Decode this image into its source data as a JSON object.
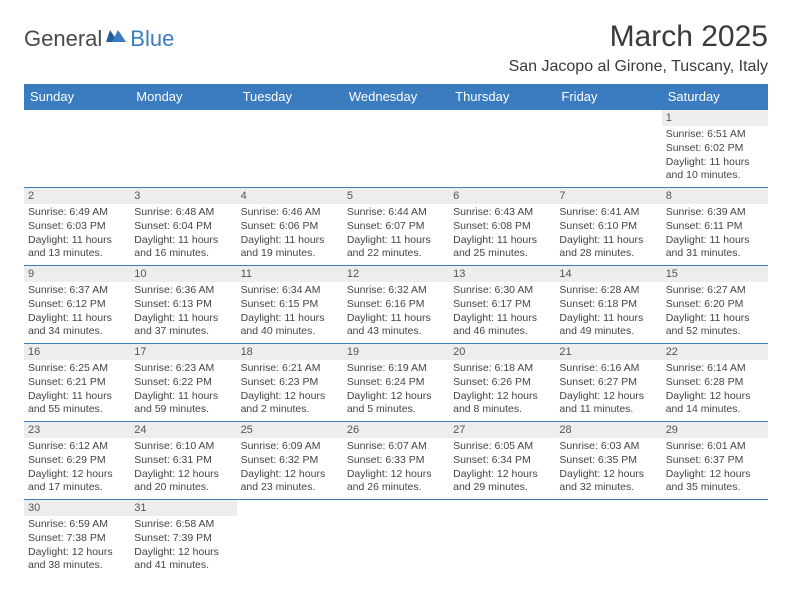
{
  "logo": {
    "text1": "General",
    "text2": "Blue"
  },
  "title": "March 2025",
  "location": "San Jacopo al Girone, Tuscany, Italy",
  "colors": {
    "header_bg": "#3b7bbf",
    "header_text": "#ffffff",
    "daynum_bg": "#ededed",
    "border": "#3b7bbf",
    "text": "#444444"
  },
  "day_headers": [
    "Sunday",
    "Monday",
    "Tuesday",
    "Wednesday",
    "Thursday",
    "Friday",
    "Saturday"
  ],
  "weeks": [
    [
      null,
      null,
      null,
      null,
      null,
      null,
      {
        "n": "1",
        "sr": "Sunrise: 6:51 AM",
        "ss": "Sunset: 6:02 PM",
        "d1": "Daylight: 11 hours",
        "d2": "and 10 minutes."
      }
    ],
    [
      {
        "n": "2",
        "sr": "Sunrise: 6:49 AM",
        "ss": "Sunset: 6:03 PM",
        "d1": "Daylight: 11 hours",
        "d2": "and 13 minutes."
      },
      {
        "n": "3",
        "sr": "Sunrise: 6:48 AM",
        "ss": "Sunset: 6:04 PM",
        "d1": "Daylight: 11 hours",
        "d2": "and 16 minutes."
      },
      {
        "n": "4",
        "sr": "Sunrise: 6:46 AM",
        "ss": "Sunset: 6:06 PM",
        "d1": "Daylight: 11 hours",
        "d2": "and 19 minutes."
      },
      {
        "n": "5",
        "sr": "Sunrise: 6:44 AM",
        "ss": "Sunset: 6:07 PM",
        "d1": "Daylight: 11 hours",
        "d2": "and 22 minutes."
      },
      {
        "n": "6",
        "sr": "Sunrise: 6:43 AM",
        "ss": "Sunset: 6:08 PM",
        "d1": "Daylight: 11 hours",
        "d2": "and 25 minutes."
      },
      {
        "n": "7",
        "sr": "Sunrise: 6:41 AM",
        "ss": "Sunset: 6:10 PM",
        "d1": "Daylight: 11 hours",
        "d2": "and 28 minutes."
      },
      {
        "n": "8",
        "sr": "Sunrise: 6:39 AM",
        "ss": "Sunset: 6:11 PM",
        "d1": "Daylight: 11 hours",
        "d2": "and 31 minutes."
      }
    ],
    [
      {
        "n": "9",
        "sr": "Sunrise: 6:37 AM",
        "ss": "Sunset: 6:12 PM",
        "d1": "Daylight: 11 hours",
        "d2": "and 34 minutes."
      },
      {
        "n": "10",
        "sr": "Sunrise: 6:36 AM",
        "ss": "Sunset: 6:13 PM",
        "d1": "Daylight: 11 hours",
        "d2": "and 37 minutes."
      },
      {
        "n": "11",
        "sr": "Sunrise: 6:34 AM",
        "ss": "Sunset: 6:15 PM",
        "d1": "Daylight: 11 hours",
        "d2": "and 40 minutes."
      },
      {
        "n": "12",
        "sr": "Sunrise: 6:32 AM",
        "ss": "Sunset: 6:16 PM",
        "d1": "Daylight: 11 hours",
        "d2": "and 43 minutes."
      },
      {
        "n": "13",
        "sr": "Sunrise: 6:30 AM",
        "ss": "Sunset: 6:17 PM",
        "d1": "Daylight: 11 hours",
        "d2": "and 46 minutes."
      },
      {
        "n": "14",
        "sr": "Sunrise: 6:28 AM",
        "ss": "Sunset: 6:18 PM",
        "d1": "Daylight: 11 hours",
        "d2": "and 49 minutes."
      },
      {
        "n": "15",
        "sr": "Sunrise: 6:27 AM",
        "ss": "Sunset: 6:20 PM",
        "d1": "Daylight: 11 hours",
        "d2": "and 52 minutes."
      }
    ],
    [
      {
        "n": "16",
        "sr": "Sunrise: 6:25 AM",
        "ss": "Sunset: 6:21 PM",
        "d1": "Daylight: 11 hours",
        "d2": "and 55 minutes."
      },
      {
        "n": "17",
        "sr": "Sunrise: 6:23 AM",
        "ss": "Sunset: 6:22 PM",
        "d1": "Daylight: 11 hours",
        "d2": "and 59 minutes."
      },
      {
        "n": "18",
        "sr": "Sunrise: 6:21 AM",
        "ss": "Sunset: 6:23 PM",
        "d1": "Daylight: 12 hours",
        "d2": "and 2 minutes."
      },
      {
        "n": "19",
        "sr": "Sunrise: 6:19 AM",
        "ss": "Sunset: 6:24 PM",
        "d1": "Daylight: 12 hours",
        "d2": "and 5 minutes."
      },
      {
        "n": "20",
        "sr": "Sunrise: 6:18 AM",
        "ss": "Sunset: 6:26 PM",
        "d1": "Daylight: 12 hours",
        "d2": "and 8 minutes."
      },
      {
        "n": "21",
        "sr": "Sunrise: 6:16 AM",
        "ss": "Sunset: 6:27 PM",
        "d1": "Daylight: 12 hours",
        "d2": "and 11 minutes."
      },
      {
        "n": "22",
        "sr": "Sunrise: 6:14 AM",
        "ss": "Sunset: 6:28 PM",
        "d1": "Daylight: 12 hours",
        "d2": "and 14 minutes."
      }
    ],
    [
      {
        "n": "23",
        "sr": "Sunrise: 6:12 AM",
        "ss": "Sunset: 6:29 PM",
        "d1": "Daylight: 12 hours",
        "d2": "and 17 minutes."
      },
      {
        "n": "24",
        "sr": "Sunrise: 6:10 AM",
        "ss": "Sunset: 6:31 PM",
        "d1": "Daylight: 12 hours",
        "d2": "and 20 minutes."
      },
      {
        "n": "25",
        "sr": "Sunrise: 6:09 AM",
        "ss": "Sunset: 6:32 PM",
        "d1": "Daylight: 12 hours",
        "d2": "and 23 minutes."
      },
      {
        "n": "26",
        "sr": "Sunrise: 6:07 AM",
        "ss": "Sunset: 6:33 PM",
        "d1": "Daylight: 12 hours",
        "d2": "and 26 minutes."
      },
      {
        "n": "27",
        "sr": "Sunrise: 6:05 AM",
        "ss": "Sunset: 6:34 PM",
        "d1": "Daylight: 12 hours",
        "d2": "and 29 minutes."
      },
      {
        "n": "28",
        "sr": "Sunrise: 6:03 AM",
        "ss": "Sunset: 6:35 PM",
        "d1": "Daylight: 12 hours",
        "d2": "and 32 minutes."
      },
      {
        "n": "29",
        "sr": "Sunrise: 6:01 AM",
        "ss": "Sunset: 6:37 PM",
        "d1": "Daylight: 12 hours",
        "d2": "and 35 minutes."
      }
    ],
    [
      {
        "n": "30",
        "sr": "Sunrise: 6:59 AM",
        "ss": "Sunset: 7:38 PM",
        "d1": "Daylight: 12 hours",
        "d2": "and 38 minutes."
      },
      {
        "n": "31",
        "sr": "Sunrise: 6:58 AM",
        "ss": "Sunset: 7:39 PM",
        "d1": "Daylight: 12 hours",
        "d2": "and 41 minutes."
      },
      null,
      null,
      null,
      null,
      null
    ]
  ]
}
